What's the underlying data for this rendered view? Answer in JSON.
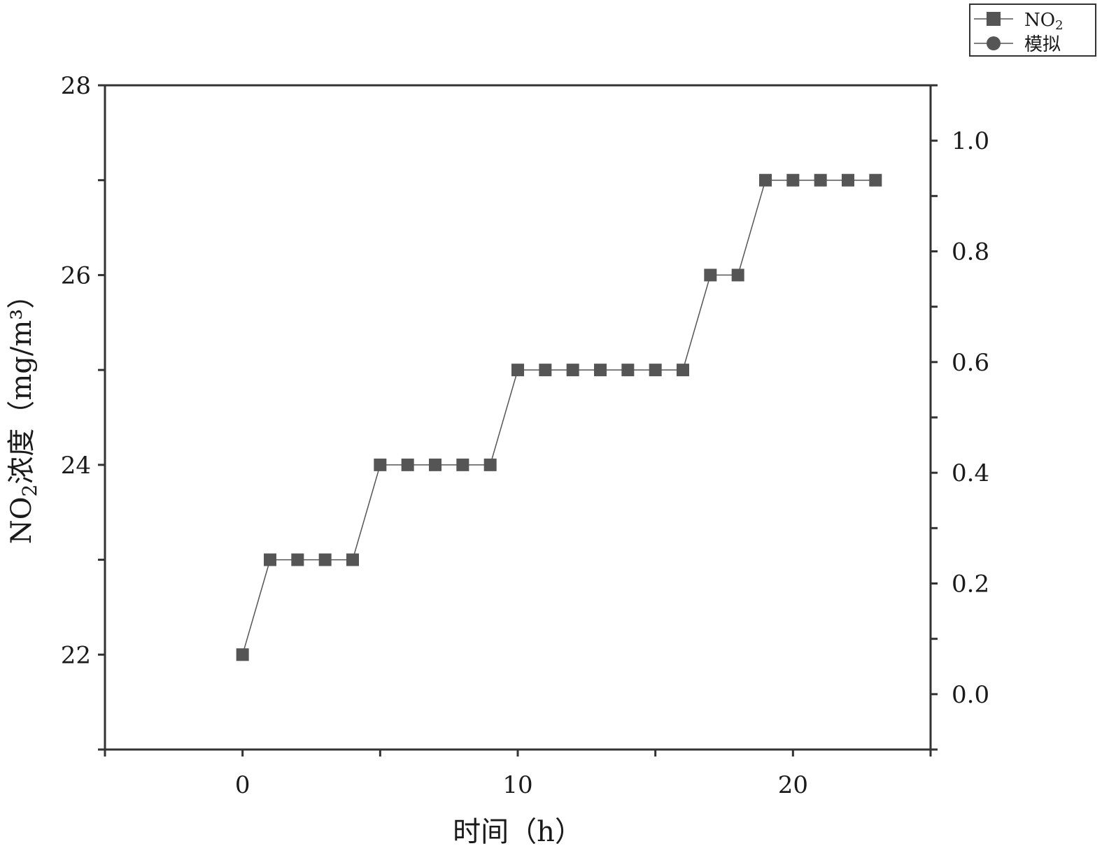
{
  "chart_data": {
    "type": "line",
    "xlabel": "时间（h）",
    "ylabel_main": "NO",
    "ylabel_sub": "2",
    "ylabel_rest": "浓度（mg/m³）",
    "xlim": [
      -5,
      25
    ],
    "ylim": [
      21.0,
      28.0
    ],
    "y2lim": [
      -0.1,
      1.1
    ],
    "x_ticks": [
      0,
      10,
      20
    ],
    "x_tick_labels": [
      "0",
      "10",
      "20"
    ],
    "y_ticks": [
      22,
      24,
      26,
      28
    ],
    "y_tick_labels": [
      "22",
      "24",
      "26",
      "28"
    ],
    "y2_ticks": [
      0.0,
      0.2,
      0.4,
      0.6,
      0.8,
      1.0
    ],
    "y2_tick_labels": [
      "0.0",
      "0.2",
      "0.4",
      "0.6",
      "0.8",
      "1.0"
    ],
    "grid": false,
    "legend_position": "top-right",
    "series": [
      {
        "name": "NO",
        "name_sub": "2",
        "marker": "square",
        "color": "#555555",
        "x": [
          0,
          1,
          2,
          3,
          4,
          5,
          6,
          7,
          8,
          9,
          10,
          11,
          12,
          13,
          14,
          15,
          16,
          17,
          18,
          19,
          20,
          21,
          22,
          23
        ],
        "values": [
          22,
          23,
          23,
          23,
          23,
          24,
          24,
          24,
          24,
          24,
          25,
          25,
          25,
          25,
          25,
          25,
          25,
          26,
          26,
          27,
          27,
          27,
          27,
          27
        ]
      },
      {
        "name": "模拟",
        "marker": "circle",
        "color": "#555555",
        "x": [],
        "values": []
      }
    ]
  }
}
